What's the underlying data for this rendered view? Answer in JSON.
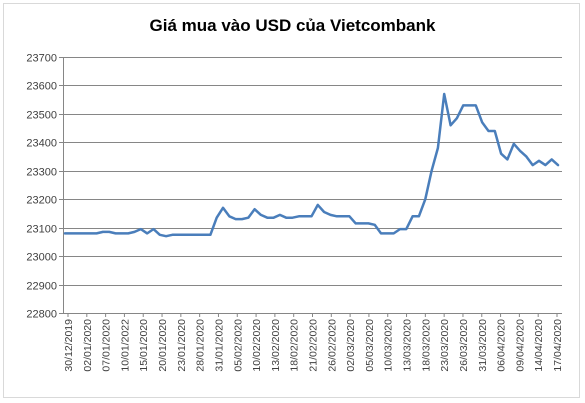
{
  "colors": {
    "line": "#4a7ebb",
    "grid": "#868686",
    "axis": "#868686",
    "background": "#ffffff"
  },
  "chart_data": {
    "type": "line",
    "title": "Giá mua vào USD của Vietcombank",
    "xlabel": "",
    "ylabel": "",
    "ylim": [
      22800,
      23700
    ],
    "yticks": [
      22800,
      22900,
      23000,
      23100,
      23200,
      23300,
      23400,
      23500,
      23600,
      23700
    ],
    "grid": "horizontal",
    "legend": "none",
    "x_tick_labels": [
      "30/12/2019",
      "02/01/2020",
      "07/01/2020",
      "10/01/2022",
      "15/01/2020",
      "20/01/2020",
      "23/01/2020",
      "28/01/2020",
      "31/01/2020",
      "05/02/2020",
      "10/02/2020",
      "13/02/2020",
      "18/02/2020",
      "21/02/2020",
      "26/02/2020",
      "02/03/2020",
      "05/03/2020",
      "10/03/2020",
      "13/03/2020",
      "18/03/2020",
      "23/03/2020",
      "26/03/2020",
      "31/03/2020",
      "06/04/2020",
      "09/04/2020",
      "14/04/2020",
      "17/04/2020"
    ],
    "series": [
      {
        "values": [
          23080,
          23080,
          23080,
          23080,
          23080,
          23080,
          23085,
          23085,
          23080,
          23080,
          23080,
          23085,
          23095,
          23080,
          23095,
          23075,
          23070,
          23075,
          23075,
          23075,
          23075,
          23075,
          23075,
          23075,
          23135,
          23170,
          23140,
          23130,
          23130,
          23135,
          23165,
          23145,
          23135,
          23135,
          23145,
          23135,
          23135,
          23140,
          23140,
          23140,
          23180,
          23155,
          23145,
          23140,
          23140,
          23140,
          23115,
          23115,
          23115,
          23110,
          23080,
          23080,
          23080,
          23095,
          23095,
          23140,
          23140,
          23200,
          23300,
          23380,
          23570,
          23460,
          23485,
          23530,
          23530,
          23530,
          23470,
          23440,
          23440,
          23360,
          23340,
          23395,
          23370,
          23350,
          23320,
          23335,
          23320,
          23340,
          23320
        ]
      }
    ]
  }
}
